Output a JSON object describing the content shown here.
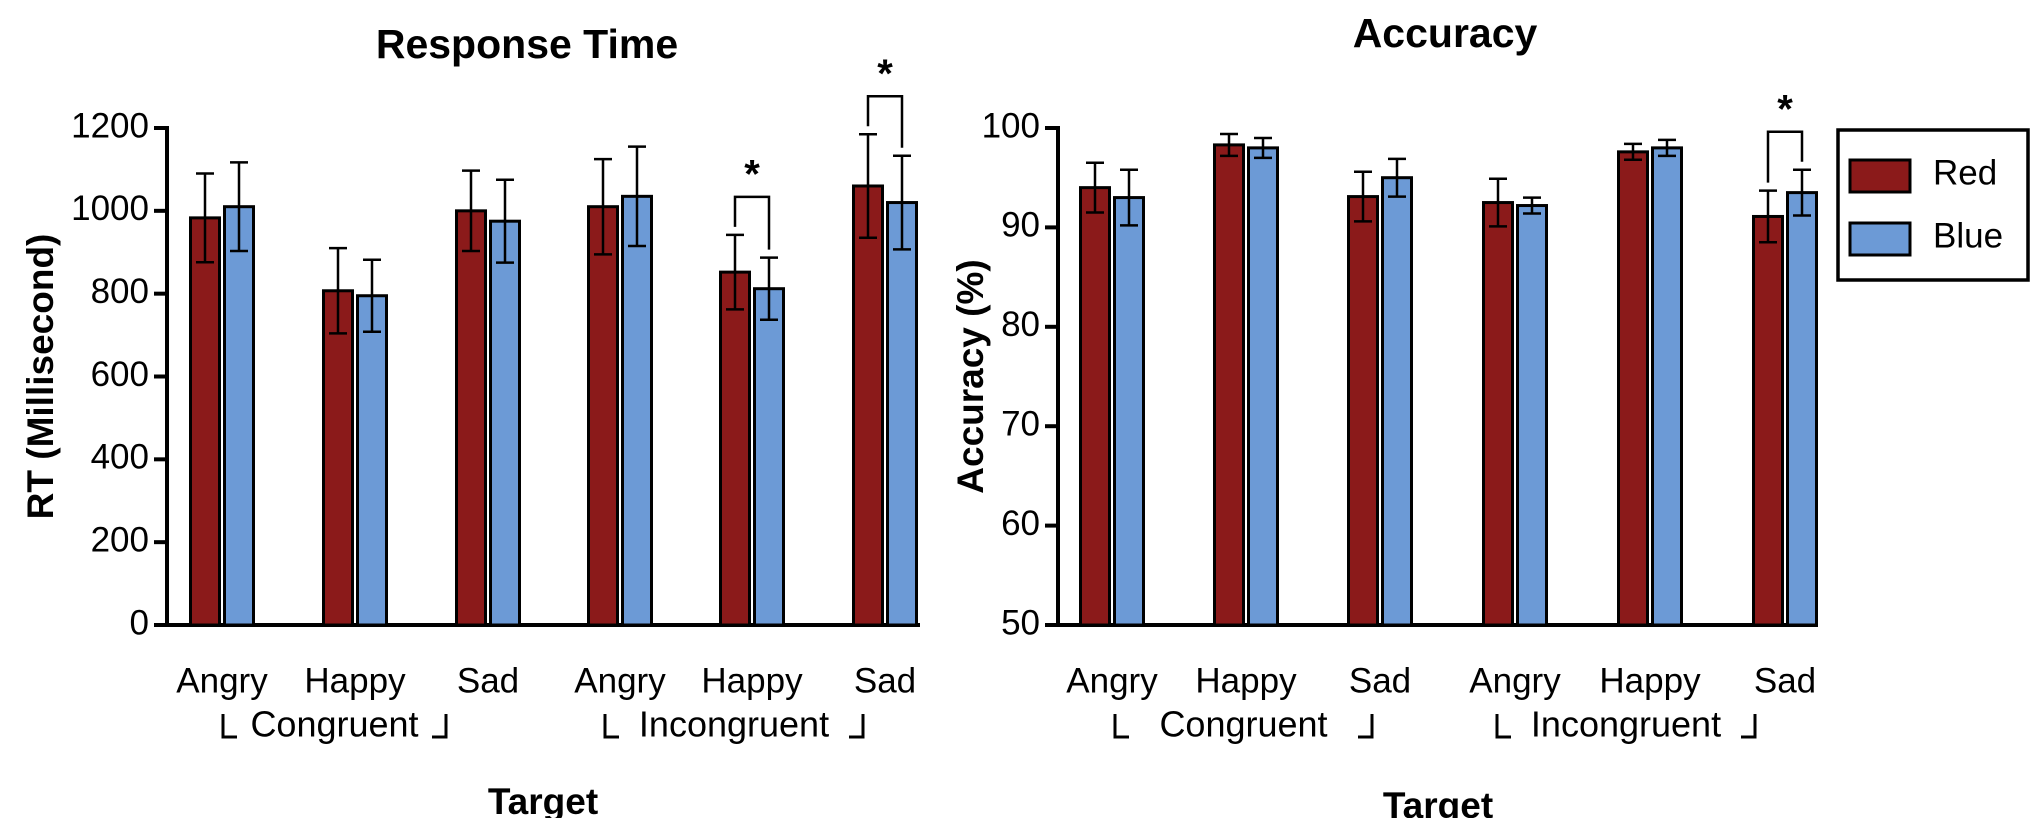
{
  "colors": {
    "Red": "#8B1A1A",
    "Blue": "#6C9AD6",
    "axis": "#000000"
  },
  "legend": {
    "entries": [
      "Red",
      "Blue"
    ],
    "placement": "right"
  },
  "chart_data": [
    {
      "type": "bar",
      "title": "Response Time",
      "xlabel": "Target",
      "ylabel": "RT (Millisecond)",
      "ylim": [
        0,
        1200
      ],
      "yticks": [
        0,
        200,
        400,
        600,
        800,
        1000,
        1200
      ],
      "categories": [
        "Angry",
        "Happy",
        "Sad",
        "Angry",
        "Happy",
        "Sad"
      ],
      "groups": [
        {
          "label": "Congruent",
          "categories": [
            0,
            1,
            2
          ]
        },
        {
          "label": "Incongruent",
          "categories": [
            3,
            4,
            5
          ]
        }
      ],
      "series": [
        {
          "name": "Red",
          "values": [
            983,
            807,
            1000,
            1010,
            852,
            1060
          ],
          "errors": [
            107,
            103,
            97,
            115,
            90,
            125
          ]
        },
        {
          "name": "Blue",
          "values": [
            1010,
            795,
            975,
            1035,
            812,
            1020
          ],
          "errors": [
            107,
            87,
            100,
            120,
            75,
            113
          ]
        }
      ],
      "significance": [
        {
          "category": 4,
          "label": "*"
        },
        {
          "category": 5,
          "label": "*"
        }
      ]
    },
    {
      "type": "bar",
      "title": "Accuracy",
      "xlabel": "Target",
      "ylabel": "Accuracy (%)",
      "ylim": [
        50,
        100
      ],
      "yticks": [
        50,
        60,
        70,
        80,
        90,
        100
      ],
      "categories": [
        "Angry",
        "Happy",
        "Sad",
        "Angry",
        "Happy",
        "Sad"
      ],
      "groups": [
        {
          "label": "Congruent",
          "categories": [
            0,
            1,
            2
          ]
        },
        {
          "label": "Incongruent",
          "categories": [
            3,
            4,
            5
          ]
        }
      ],
      "series": [
        {
          "name": "Red",
          "values": [
            94.0,
            98.3,
            93.1,
            92.5,
            97.6,
            91.1
          ],
          "errors": [
            2.5,
            1.1,
            2.5,
            2.4,
            0.8,
            2.6
          ]
        },
        {
          "name": "Blue",
          "values": [
            93.0,
            98.0,
            95.0,
            92.2,
            98.0,
            93.5
          ],
          "errors": [
            2.8,
            1.0,
            1.9,
            0.8,
            0.8,
            2.3
          ]
        }
      ],
      "significance": [
        {
          "category": 5,
          "label": "*"
        }
      ]
    }
  ]
}
